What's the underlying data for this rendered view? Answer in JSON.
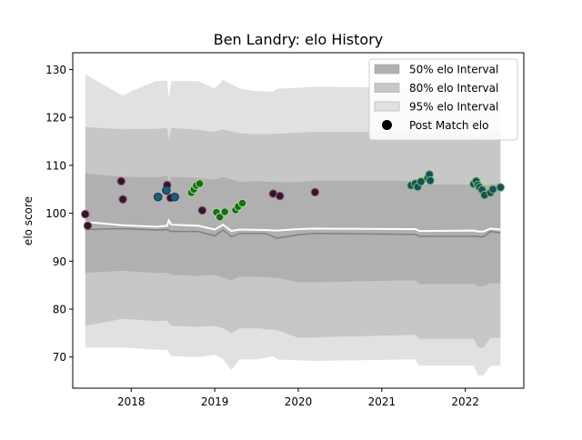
{
  "chart_data": {
    "type": "scatter",
    "title": "Ben Landry: elo History",
    "xlabel": "",
    "ylabel": "elo score",
    "xlim": [
      2017.3,
      2022.7
    ],
    "ylim": [
      63.5,
      133.5
    ],
    "x_ticks": [
      {
        "value": 2018,
        "label": "2018"
      },
      {
        "value": 2019,
        "label": "2019"
      },
      {
        "value": 2020,
        "label": "2020"
      },
      {
        "value": 2021,
        "label": "2021"
      },
      {
        "value": 2022,
        "label": "2022"
      }
    ],
    "y_ticks": [
      {
        "value": 70,
        "label": "70"
      },
      {
        "value": 80,
        "label": "80"
      },
      {
        "value": 90,
        "label": "90"
      },
      {
        "value": 100,
        "label": "100"
      },
      {
        "value": 110,
        "label": "110"
      },
      {
        "value": 120,
        "label": "120"
      },
      {
        "value": 130,
        "label": "130"
      }
    ],
    "legend": {
      "position": "top-right",
      "entries": [
        {
          "label": "50% elo Interval",
          "kind": "band",
          "color": "#b0b0b0"
        },
        {
          "label": "80% elo Interval",
          "kind": "band",
          "color": "#c7c7c7"
        },
        {
          "label": "95% elo Interval",
          "kind": "band",
          "color": "#e1e1e1"
        },
        {
          "label": "Post Match elo",
          "kind": "marker",
          "color": "#000000"
        }
      ]
    },
    "bands": [
      {
        "name": "95% elo Interval",
        "color": "#e1e1e1",
        "upper": [
          [
            2017.45,
            129
          ],
          [
            2017.9,
            124.5
          ],
          [
            2018.0,
            125.5
          ],
          [
            2018.3,
            127.6
          ],
          [
            2018.43,
            127.7
          ],
          [
            2018.45,
            124
          ],
          [
            2018.48,
            127.6
          ],
          [
            2018.8,
            127.6
          ],
          [
            2019.0,
            126
          ],
          [
            2019.1,
            127.8
          ],
          [
            2019.3,
            126
          ],
          [
            2019.5,
            125.5
          ],
          [
            2019.7,
            125.4
          ],
          [
            2019.75,
            126
          ],
          [
            2020.0,
            126.2
          ],
          [
            2020.2,
            126.4
          ],
          [
            2021.3,
            126.2
          ],
          [
            2021.4,
            126.2
          ],
          [
            2021.45,
            125.6
          ],
          [
            2021.7,
            125.6
          ],
          [
            2022.1,
            125.6
          ],
          [
            2022.15,
            124.8
          ],
          [
            2022.3,
            125.8
          ],
          [
            2022.42,
            126
          ]
        ],
        "lower": [
          [
            2017.45,
            72
          ],
          [
            2017.9,
            72
          ],
          [
            2018.3,
            71.5
          ],
          [
            2018.43,
            71.5
          ],
          [
            2018.48,
            70.2
          ],
          [
            2018.8,
            70
          ],
          [
            2019.0,
            70.5
          ],
          [
            2019.1,
            69.5
          ],
          [
            2019.2,
            67.3
          ],
          [
            2019.3,
            69.5
          ],
          [
            2019.5,
            69.5
          ],
          [
            2019.7,
            70.2
          ],
          [
            2019.75,
            69.5
          ],
          [
            2020.0,
            69.3
          ],
          [
            2020.2,
            69.2
          ],
          [
            2021.3,
            69.5
          ],
          [
            2021.4,
            69.5
          ],
          [
            2021.45,
            68.2
          ],
          [
            2021.7,
            68.2
          ],
          [
            2022.1,
            68.2
          ],
          [
            2022.15,
            66.2
          ],
          [
            2022.22,
            66.2
          ],
          [
            2022.3,
            68.2
          ],
          [
            2022.42,
            68.2
          ]
        ]
      },
      {
        "name": "80% elo Interval",
        "color": "#c7c7c7",
        "upper": [
          [
            2017.45,
            118
          ],
          [
            2017.9,
            117.5
          ],
          [
            2018.3,
            117.6
          ],
          [
            2018.43,
            117.8
          ],
          [
            2018.45,
            115.5
          ],
          [
            2018.48,
            117.8
          ],
          [
            2018.8,
            117.4
          ],
          [
            2019.0,
            117
          ],
          [
            2019.1,
            117.5
          ],
          [
            2019.3,
            116.7
          ],
          [
            2019.5,
            116.5
          ],
          [
            2019.75,
            116.6
          ],
          [
            2020.0,
            116.8
          ],
          [
            2020.2,
            117
          ],
          [
            2021.4,
            117
          ],
          [
            2021.45,
            116.5
          ],
          [
            2022.1,
            116.5
          ],
          [
            2022.15,
            116
          ],
          [
            2022.3,
            116.6
          ],
          [
            2022.42,
            116.8
          ]
        ],
        "lower": [
          [
            2017.45,
            76.5
          ],
          [
            2017.9,
            78
          ],
          [
            2018.3,
            77.5
          ],
          [
            2018.43,
            77.6
          ],
          [
            2018.48,
            76.5
          ],
          [
            2018.8,
            76.3
          ],
          [
            2019.0,
            76.5
          ],
          [
            2019.1,
            76
          ],
          [
            2019.2,
            75
          ],
          [
            2019.3,
            76
          ],
          [
            2019.5,
            76
          ],
          [
            2019.75,
            75.6
          ],
          [
            2020.0,
            74
          ],
          [
            2020.2,
            74.1
          ],
          [
            2021.3,
            74.6
          ],
          [
            2021.4,
            74.7
          ],
          [
            2021.45,
            73.8
          ],
          [
            2021.7,
            73.8
          ],
          [
            2022.1,
            73.8
          ],
          [
            2022.15,
            72
          ],
          [
            2022.22,
            72
          ],
          [
            2022.3,
            74
          ],
          [
            2022.42,
            74
          ]
        ]
      },
      {
        "name": "50% elo Interval",
        "color": "#b0b0b0",
        "upper": [
          [
            2017.45,
            108.3
          ],
          [
            2017.9,
            107.6
          ],
          [
            2018.3,
            107.5
          ],
          [
            2018.43,
            107.8
          ],
          [
            2018.45,
            106.5
          ],
          [
            2018.48,
            107.6
          ],
          [
            2018.8,
            107.4
          ],
          [
            2019.0,
            107
          ],
          [
            2019.1,
            107.6
          ],
          [
            2019.3,
            106.5
          ],
          [
            2019.5,
            106.7
          ],
          [
            2019.75,
            106.5
          ],
          [
            2020.0,
            106.5
          ],
          [
            2020.2,
            106.8
          ],
          [
            2021.4,
            106.8
          ],
          [
            2021.45,
            106
          ],
          [
            2022.1,
            106
          ],
          [
            2022.15,
            105.7
          ],
          [
            2022.3,
            106
          ],
          [
            2022.42,
            106.2
          ]
        ],
        "lower": [
          [
            2017.45,
            87.6
          ],
          [
            2017.9,
            88
          ],
          [
            2018.3,
            87.5
          ],
          [
            2018.43,
            87.6
          ],
          [
            2018.48,
            87.2
          ],
          [
            2018.8,
            86.9
          ],
          [
            2019.0,
            87.2
          ],
          [
            2019.1,
            86.6
          ],
          [
            2019.2,
            86
          ],
          [
            2019.3,
            86.8
          ],
          [
            2019.5,
            86.8
          ],
          [
            2019.75,
            86.5
          ],
          [
            2020.0,
            85.6
          ],
          [
            2020.2,
            85.6
          ],
          [
            2021.3,
            86
          ],
          [
            2021.4,
            86
          ],
          [
            2021.45,
            85.2
          ],
          [
            2021.7,
            85.2
          ],
          [
            2022.1,
            85.3
          ],
          [
            2022.15,
            84.8
          ],
          [
            2022.22,
            84.8
          ],
          [
            2022.3,
            85.4
          ],
          [
            2022.42,
            85.4
          ]
        ]
      }
    ],
    "lines": [
      {
        "color": "#ffffff",
        "width": 2,
        "points": [
          [
            2017.45,
            98.2
          ],
          [
            2017.9,
            97.5
          ],
          [
            2018.3,
            97.2
          ],
          [
            2018.43,
            97.4
          ],
          [
            2018.45,
            98.5
          ],
          [
            2018.48,
            97.6
          ],
          [
            2018.8,
            97.4
          ],
          [
            2019.0,
            96.6
          ],
          [
            2019.1,
            97.6
          ],
          [
            2019.2,
            96.3
          ],
          [
            2019.3,
            96.6
          ],
          [
            2019.6,
            96.5
          ],
          [
            2019.75,
            96.4
          ],
          [
            2020.0,
            96.7
          ],
          [
            2020.2,
            96.8
          ],
          [
            2021.3,
            96.7
          ],
          [
            2021.4,
            96.7
          ],
          [
            2021.45,
            96.3
          ],
          [
            2022.1,
            96.4
          ],
          [
            2022.15,
            96.2
          ],
          [
            2022.22,
            96.2
          ],
          [
            2022.3,
            96.8
          ],
          [
            2022.42,
            96.6
          ]
        ]
      },
      {
        "color": "#808080",
        "width": 1.5,
        "points": [
          [
            2017.45,
            96.6
          ],
          [
            2017.9,
            96.8
          ],
          [
            2018.3,
            96.5
          ],
          [
            2018.43,
            96.6
          ],
          [
            2018.48,
            96.2
          ],
          [
            2018.8,
            96.2
          ],
          [
            2019.0,
            95.3
          ],
          [
            2019.1,
            96.5
          ],
          [
            2019.2,
            95.1
          ],
          [
            2019.3,
            95.8
          ],
          [
            2019.6,
            95.8
          ],
          [
            2019.75,
            94.8
          ],
          [
            2020.0,
            95.5
          ],
          [
            2020.2,
            95.8
          ],
          [
            2021.3,
            95.6
          ],
          [
            2021.4,
            95.6
          ],
          [
            2021.45,
            95.2
          ],
          [
            2022.1,
            95.2
          ],
          [
            2022.15,
            95.1
          ],
          [
            2022.22,
            95.1
          ],
          [
            2022.3,
            96.2
          ],
          [
            2022.42,
            95.9
          ]
        ]
      }
    ],
    "series": [
      {
        "fill": "#2a1a2e",
        "edge": "#b0587a",
        "points": [
          [
            2017.45,
            99.8
          ],
          [
            2017.48,
            97.4
          ],
          [
            2017.88,
            106.7
          ],
          [
            2017.9,
            102.9
          ],
          [
            2018.43,
            105.9
          ],
          [
            2018.47,
            103.2
          ],
          [
            2018.85,
            100.6
          ],
          [
            2019.7,
            104.1
          ],
          [
            2019.78,
            103.6
          ],
          [
            2020.2,
            104.4
          ]
        ]
      },
      {
        "fill": "#1d5b7a",
        "edge": "#16344a",
        "points": [
          [
            2018.32,
            103.4
          ],
          [
            2018.42,
            104.8
          ],
          [
            2018.52,
            103.4
          ]
        ]
      },
      {
        "fill": "#1b6a1b",
        "edge": "#b2dca0",
        "points": [
          [
            2018.72,
            104.3
          ],
          [
            2018.75,
            105.0
          ],
          [
            2018.78,
            105.8
          ],
          [
            2018.82,
            106.2
          ],
          [
            2019.02,
            100.2
          ],
          [
            2019.06,
            99.2
          ],
          [
            2019.12,
            100.3
          ],
          [
            2019.25,
            100.7
          ],
          [
            2019.28,
            101.4
          ],
          [
            2019.33,
            102.1
          ]
        ]
      },
      {
        "fill": "#1a4d5e",
        "edge": "#74c067",
        "points": [
          [
            2021.35,
            105.8
          ],
          [
            2021.4,
            106.2
          ],
          [
            2021.43,
            105.5
          ],
          [
            2021.47,
            106.6
          ],
          [
            2021.55,
            107.3
          ],
          [
            2021.57,
            108.1
          ],
          [
            2021.58,
            106.8
          ],
          [
            2022.1,
            106.1
          ],
          [
            2022.13,
            106.7
          ],
          [
            2022.15,
            105.9
          ],
          [
            2022.17,
            105.4
          ],
          [
            2022.2,
            104.9
          ],
          [
            2022.23,
            103.8
          ],
          [
            2022.3,
            104.3
          ],
          [
            2022.33,
            105.0
          ],
          [
            2022.42,
            105.4
          ]
        ]
      }
    ]
  }
}
